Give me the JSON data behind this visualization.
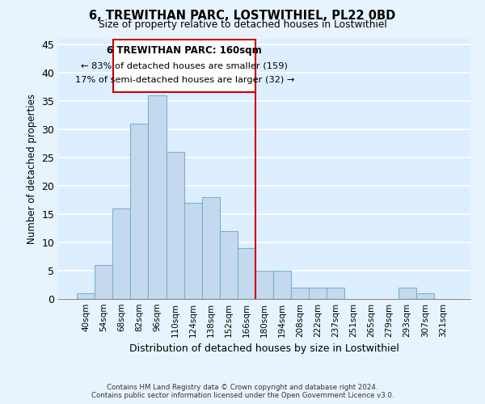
{
  "title": "6, TREWITHAN PARC, LOSTWITHIEL, PL22 0BD",
  "subtitle": "Size of property relative to detached houses in Lostwithiel",
  "xlabel": "Distribution of detached houses by size in Lostwithiel",
  "ylabel": "Number of detached properties",
  "bar_labels": [
    "40sqm",
    "54sqm",
    "68sqm",
    "82sqm",
    "96sqm",
    "110sqm",
    "124sqm",
    "138sqm",
    "152sqm",
    "166sqm",
    "180sqm",
    "194sqm",
    "208sqm",
    "222sqm",
    "237sqm",
    "251sqm",
    "265sqm",
    "279sqm",
    "293sqm",
    "307sqm",
    "321sqm"
  ],
  "bar_values": [
    1,
    6,
    16,
    31,
    36,
    26,
    17,
    18,
    12,
    9,
    5,
    5,
    2,
    2,
    2,
    0,
    0,
    0,
    2,
    1,
    0
  ],
  "bar_color": "#c5d9ee",
  "bar_edge_color": "#7aafd4",
  "background_color": "#ddeeff",
  "grid_color": "#ffffff",
  "ylim": [
    0,
    46
  ],
  "yticks": [
    0,
    5,
    10,
    15,
    20,
    25,
    30,
    35,
    40,
    45
  ],
  "property_line_x": 9.5,
  "property_label": "6 TREWITHAN PARC: 160sqm",
  "annotation_line1": "← 83% of detached houses are smaller (159)",
  "annotation_line2": "17% of semi-detached houses are larger (32) →",
  "annotation_box_color": "#cc0000",
  "footnote1": "Contains HM Land Registry data © Crown copyright and database right 2024.",
  "footnote2": "Contains public sector information licensed under the Open Government Licence v3.0.",
  "fig_bg": "#e8f4fd"
}
